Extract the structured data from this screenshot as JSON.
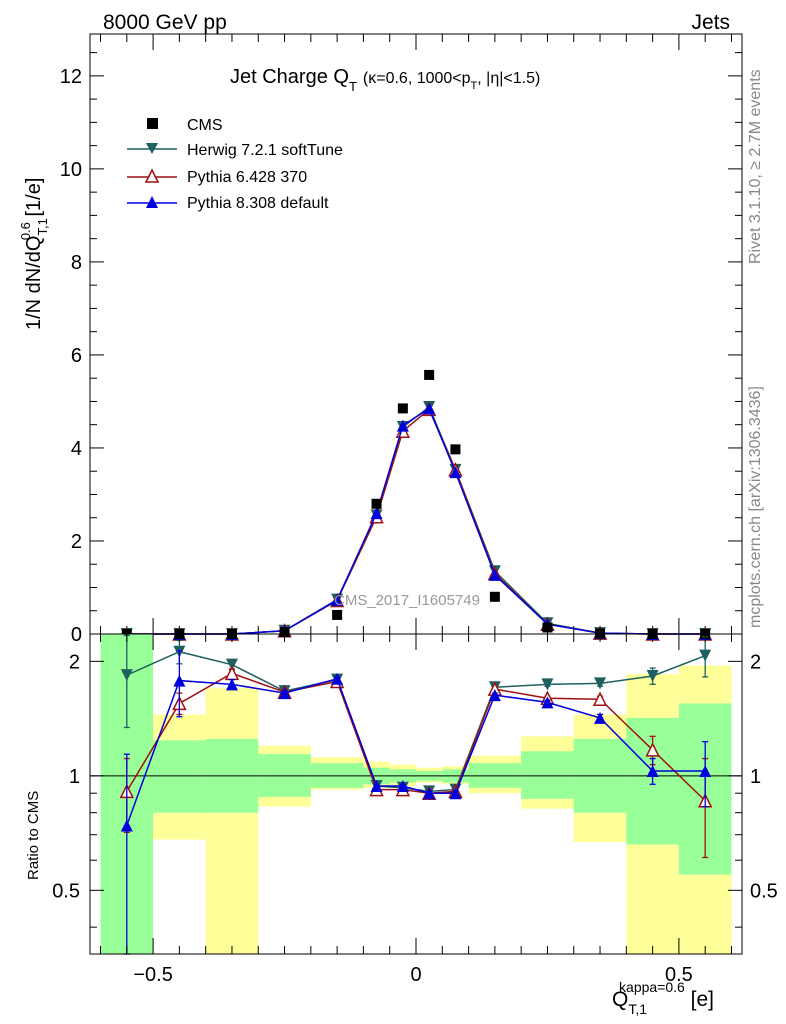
{
  "header": {
    "left": "8000 GeV pp",
    "right": "Jets"
  },
  "side": {
    "rivet": "Rivet 3.1.10, ≥ 2.7M events",
    "mcplots": "mcplots.cern.ch [arXiv:1306.3436]"
  },
  "colors": {
    "cms": "#000000",
    "herwig": "#1e6060",
    "pythia6": "#a01010",
    "pythia8": "#0000dd",
    "band_green": "#99ff99",
    "band_yellow": "#ffff99"
  },
  "chart_data": [
    {
      "type": "scatter",
      "title": "Jet Charge Q_T (κ=0.6, 1000<p_T, |η|<1.5)",
      "title_parts": {
        "main": "Jet Charge Q",
        "main_sub": "T",
        "paren_a": "(κ=0.6, 1000<p",
        "paren_sub": "T",
        "paren_b": ", |η|<1.5)"
      },
      "ylabel": "1/N dN/dQ_T,1^0.6 [1/e]",
      "ylabel_parts": {
        "a": "1/N dN/dQ",
        "sub": "T,1",
        "sup": "0.6",
        "b": " [1/e]"
      },
      "watermark": "CMS_2017_I1605749",
      "xlim": [
        -0.62,
        0.62
      ],
      "ylim": [
        0,
        12.9
      ],
      "yticks": [
        0,
        2,
        4,
        6,
        8,
        10,
        12
      ],
      "ytick_labels": [
        "0",
        "2",
        "4",
        "6",
        "8",
        "10",
        "12"
      ],
      "legend_position": "top-left",
      "x": [
        -0.55,
        -0.45,
        -0.35,
        -0.25,
        -0.15,
        -0.075,
        -0.025,
        0.025,
        0.075,
        0.15,
        0.25,
        0.35,
        0.45,
        0.55
      ],
      "series": [
        {
          "name": "CMS",
          "marker": "square",
          "color_key": "cms",
          "values": [
            0.0,
            0.0,
            0.0,
            0.04,
            0.41,
            2.8,
            4.85,
            5.57,
            3.97,
            0.8,
            0.14,
            0.01,
            0.0,
            0.0
          ]
        },
        {
          "name": "Herwig 7.2.1 softTune",
          "marker": "triangle-down",
          "color_key": "herwig",
          "values": [
            0.0,
            0.0,
            0.0,
            0.07,
            0.74,
            2.55,
            4.45,
            4.88,
            3.53,
            1.35,
            0.23,
            0.02,
            0.0,
            0.0
          ]
        },
        {
          "name": "Pythia 6.428 370",
          "marker": "triangle-up-open",
          "color_key": "pythia6",
          "values": [
            0.0,
            0.0,
            0.0,
            0.07,
            0.72,
            2.52,
            4.36,
            4.83,
            3.53,
            1.3,
            0.21,
            0.02,
            0.0,
            0.0
          ]
        },
        {
          "name": "Pythia 8.308 default",
          "marker": "triangle-up",
          "color_key": "pythia8",
          "values": [
            0.0,
            0.0,
            0.0,
            0.07,
            0.73,
            2.6,
            4.48,
            4.85,
            3.48,
            1.27,
            0.21,
            0.02,
            0.0,
            0.0
          ]
        }
      ]
    },
    {
      "type": "line",
      "ylabel": "Ratio to CMS",
      "xlabel": "Q_T,1^kappa=0.6 [e]",
      "xlabel_parts": {
        "a": "Q",
        "sub": "T,1",
        "sup": "kappa=0.6",
        "b": " [e]"
      },
      "xlim": [
        -0.62,
        0.62
      ],
      "xticks": [
        -0.5,
        0,
        0.5
      ],
      "xtick_labels": [
        "−0.5",
        "0",
        "0.5"
      ],
      "ylim": [
        0.34,
        2.36
      ],
      "log_y": true,
      "yticks": [
        0.5,
        1,
        2
      ],
      "ytick_labels": [
        "0.5",
        "1",
        "2"
      ],
      "reference_line": 1,
      "bins": [
        [
          -0.6,
          -0.5
        ],
        [
          -0.5,
          -0.4
        ],
        [
          -0.4,
          -0.3
        ],
        [
          -0.3,
          -0.2
        ],
        [
          -0.2,
          -0.1
        ],
        [
          -0.1,
          -0.05
        ],
        [
          -0.05,
          0
        ],
        [
          0,
          0.05
        ],
        [
          0.05,
          0.1
        ],
        [
          0.1,
          0.2
        ],
        [
          0.2,
          0.3
        ],
        [
          0.3,
          0.4
        ],
        [
          0.4,
          0.5
        ],
        [
          0.5,
          0.6
        ]
      ],
      "band_green": [
        [
          0.34,
          2.36
        ],
        [
          0.8,
          1.24
        ],
        [
          0.8,
          1.25
        ],
        [
          0.88,
          1.14
        ],
        [
          0.93,
          1.08
        ],
        [
          0.95,
          1.05
        ],
        [
          0.96,
          1.04
        ],
        [
          0.97,
          1.03
        ],
        [
          0.96,
          1.04
        ],
        [
          0.93,
          1.08
        ],
        [
          0.87,
          1.16
        ],
        [
          0.8,
          1.25
        ],
        [
          0.66,
          1.42
        ],
        [
          0.55,
          1.55
        ]
      ],
      "band_yellow": [
        [
          0.34,
          2.36
        ],
        [
          0.68,
          1.45
        ],
        [
          0.34,
          1.7
        ],
        [
          0.83,
          1.2
        ],
        [
          0.92,
          1.12
        ],
        [
          0.93,
          1.09
        ],
        [
          0.94,
          1.07
        ],
        [
          0.96,
          1.05
        ],
        [
          0.95,
          1.06
        ],
        [
          0.9,
          1.13
        ],
        [
          0.82,
          1.27
        ],
        [
          0.67,
          1.45
        ],
        [
          0.34,
          1.85
        ],
        [
          0.34,
          1.95
        ]
      ],
      "x": [
        -0.55,
        -0.45,
        -0.35,
        -0.25,
        -0.15,
        -0.075,
        -0.025,
        0.025,
        0.075,
        0.15,
        0.25,
        0.35,
        0.45,
        0.55
      ],
      "series": [
        {
          "name": "Herwig 7.2.1 softTune",
          "marker": "triangle-down",
          "color_key": "herwig",
          "values": [
            1.84,
            2.12,
            1.96,
            1.67,
            1.79,
            0.94,
            0.93,
            0.91,
            0.92,
            1.71,
            1.74,
            1.75,
            1.83,
            2.07
          ],
          "err": [
            0.5,
            0.15,
            0.06,
            0.02,
            0.02,
            0.01,
            0.01,
            0.01,
            0.01,
            0.02,
            0.02,
            0.03,
            0.09,
            0.25
          ]
        },
        {
          "name": "Pythia 6.428 370",
          "marker": "triangle-up-open",
          "color_key": "pythia6",
          "values": [
            0.91,
            1.55,
            1.86,
            1.66,
            1.77,
            0.92,
            0.92,
            0.9,
            0.91,
            1.69,
            1.6,
            1.59,
            1.17,
            0.86
          ],
          "err": [
            0.2,
            0.1,
            0.05,
            0.02,
            0.02,
            0.01,
            0.01,
            0.01,
            0.01,
            0.02,
            0.02,
            0.03,
            0.1,
            0.25
          ]
        },
        {
          "name": "Pythia 8.308 default",
          "marker": "triangle-up",
          "color_key": "pythia8",
          "values": [
            0.74,
            1.78,
            1.74,
            1.65,
            1.8,
            0.94,
            0.94,
            0.9,
            0.9,
            1.63,
            1.56,
            1.42,
            1.03,
            1.03
          ],
          "err": [
            0.4,
            0.35,
            0.05,
            0.02,
            0.02,
            0.01,
            0.01,
            0.01,
            0.01,
            0.02,
            0.02,
            0.03,
            0.08,
            0.2
          ]
        }
      ]
    }
  ]
}
